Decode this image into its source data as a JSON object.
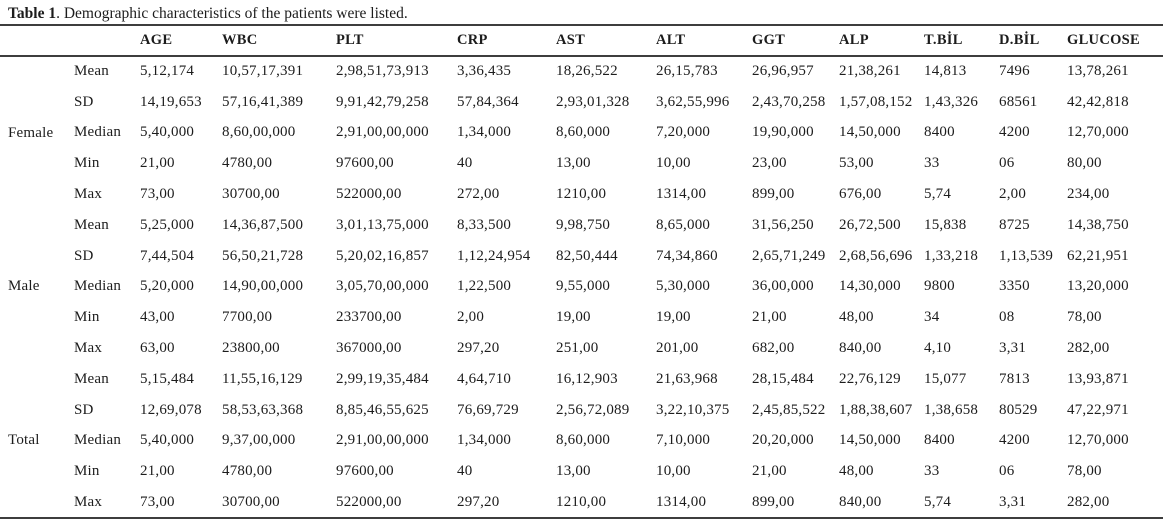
{
  "page": {
    "title_bold": "Table 1",
    "title_rest": ". Demographic characteristics of the patients were listed."
  },
  "colors": {
    "background": "#ffffff",
    "text": "#1c1c1c",
    "rule": "#3d3d3d"
  },
  "table": {
    "columns": [
      "AGE",
      "WBC",
      "PLT",
      "CRP",
      "AST",
      "ALT",
      "GGT",
      "ALP",
      "T.BİL",
      "D.BİL",
      "GLUCOSE"
    ],
    "groups": [
      {
        "name": "Female",
        "rows": [
          {
            "stat": "Mean",
            "values": [
              "5,12,174",
              "10,57,17,391",
              "2,98,51,73,913",
              "3,36,435",
              "18,26,522",
              "26,15,783",
              "26,96,957",
              "21,38,261",
              "14,813",
              "7496",
              "13,78,261"
            ]
          },
          {
            "stat": "SD",
            "values": [
              "14,19,653",
              "57,16,41,389",
              "9,91,42,79,258",
              "57,84,364",
              "2,93,01,328",
              "3,62,55,996",
              "2,43,70,258",
              "1,57,08,152",
              "1,43,326",
              "68561",
              "42,42,818"
            ]
          },
          {
            "stat": "Median",
            "values": [
              "5,40,000",
              "8,60,00,000",
              "2,91,00,00,000",
              "1,34,000",
              "8,60,000",
              "7,20,000",
              "19,90,000",
              "14,50,000",
              "8400",
              "4200",
              "12,70,000"
            ]
          },
          {
            "stat": "Min",
            "values": [
              "21,00",
              "4780,00",
              "97600,00",
              "40",
              "13,00",
              "10,00",
              "23,00",
              "53,00",
              "33",
              "06",
              "80,00"
            ]
          },
          {
            "stat": "Max",
            "values": [
              "73,00",
              "30700,00",
              "522000,00",
              "272,00",
              "1210,00",
              "1314,00",
              "899,00",
              "676,00",
              "5,74",
              "2,00",
              "234,00"
            ]
          }
        ]
      },
      {
        "name": "Male",
        "rows": [
          {
            "stat": "Mean",
            "values": [
              "5,25,000",
              "14,36,87,500",
              "3,01,13,75,000",
              "8,33,500",
              "9,98,750",
              "8,65,000",
              "31,56,250",
              "26,72,500",
              "15,838",
              "8725",
              "14,38,750"
            ]
          },
          {
            "stat": "SD",
            "values": [
              "7,44,504",
              "56,50,21,728",
              "5,20,02,16,857",
              "1,12,24,954",
              "82,50,444",
              "74,34,860",
              "2,65,71,249",
              "2,68,56,696",
              "1,33,218",
              "1,13,539",
              "62,21,951"
            ]
          },
          {
            "stat": "Median",
            "values": [
              "5,20,000",
              "14,90,00,000",
              "3,05,70,00,000",
              "1,22,500",
              "9,55,000",
              "5,30,000",
              "36,00,000",
              "14,30,000",
              "9800",
              "3350",
              "13,20,000"
            ]
          },
          {
            "stat": "Min",
            "values": [
              "43,00",
              "7700,00",
              "233700,00",
              "2,00",
              "19,00",
              "19,00",
              "21,00",
              "48,00",
              "34",
              "08",
              "78,00"
            ]
          },
          {
            "stat": "Max",
            "values": [
              "63,00",
              "23800,00",
              "367000,00",
              "297,20",
              "251,00",
              "201,00",
              "682,00",
              "840,00",
              "4,10",
              "3,31",
              "282,00"
            ]
          }
        ]
      },
      {
        "name": "Total",
        "rows": [
          {
            "stat": "Mean",
            "values": [
              "5,15,484",
              "11,55,16,129",
              "2,99,19,35,484",
              "4,64,710",
              "16,12,903",
              "21,63,968",
              "28,15,484",
              "22,76,129",
              "15,077",
              "7813",
              "13,93,871"
            ]
          },
          {
            "stat": "SD",
            "values": [
              "12,69,078",
              "58,53,63,368",
              "8,85,46,55,625",
              "76,69,729",
              "2,56,72,089",
              "3,22,10,375",
              "2,45,85,522",
              "1,88,38,607",
              "1,38,658",
              "80529",
              "47,22,971"
            ]
          },
          {
            "stat": "Median",
            "values": [
              "5,40,000",
              "9,37,00,000",
              "2,91,00,00,000",
              "1,34,000",
              "8,60,000",
              "7,10,000",
              "20,20,000",
              "14,50,000",
              "8400",
              "4200",
              "12,70,000"
            ]
          },
          {
            "stat": "Min",
            "values": [
              "21,00",
              "4780,00",
              "97600,00",
              "40",
              "13,00",
              "10,00",
              "21,00",
              "48,00",
              "33",
              "06",
              "78,00"
            ]
          },
          {
            "stat": "Max",
            "values": [
              "73,00",
              "30700,00",
              "522000,00",
              "297,20",
              "1210,00",
              "1314,00",
              "899,00",
              "840,00",
              "5,74",
              "3,31",
              "282,00"
            ]
          }
        ]
      }
    ]
  }
}
